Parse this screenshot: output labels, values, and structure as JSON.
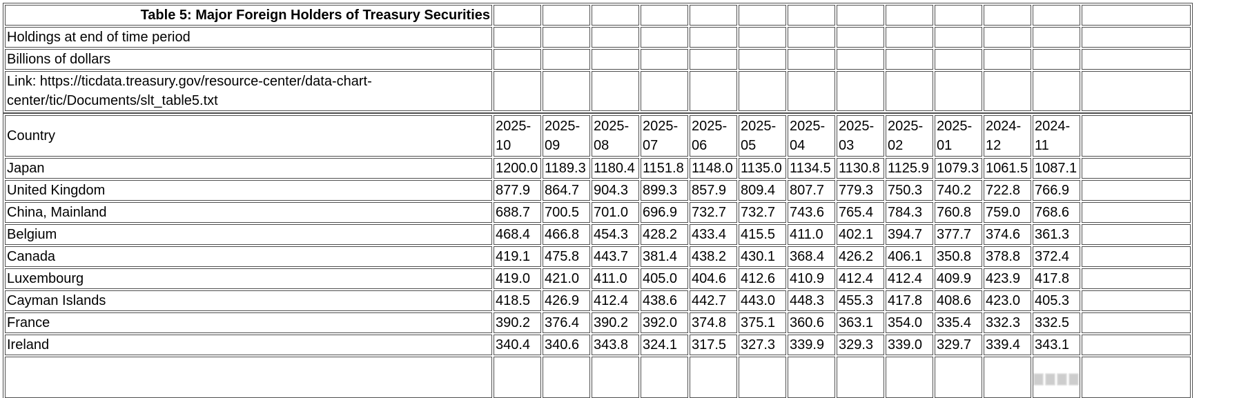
{
  "table": {
    "title": "Table 5: Major Foreign Holders of Treasury Securities",
    "holdings_note": "Holdings at end of time period",
    "units_note": "Billions of dollars",
    "link_line": "Link: https://ticdata.treasury.gov/resource-center/data-chart-center/tic/Documents/slt_table5.txt",
    "header": {
      "country_label": "Country",
      "periods": [
        "2025-10",
        "2025-09",
        "2025-08",
        "2025-07",
        "2025-06",
        "2025-05",
        "2025-04",
        "2025-03",
        "2025-02",
        "2025-01",
        "2024-12",
        "2024-11"
      ]
    },
    "rows": [
      {
        "country": "Japan",
        "values": [
          "1200.0",
          "1189.3",
          "1180.4",
          "1151.8",
          "1148.0",
          "1135.0",
          "1134.5",
          "1130.8",
          "1125.9",
          "1079.3",
          "1061.5",
          "1087.1"
        ]
      },
      {
        "country": "United Kingdom",
        "values": [
          "877.9",
          "864.7",
          "904.3",
          "899.3",
          "857.9",
          "809.4",
          "807.7",
          "779.3",
          "750.3",
          "740.2",
          "722.8",
          "766.9"
        ]
      },
      {
        "country": "China, Mainland",
        "values": [
          "688.7",
          "700.5",
          "701.0",
          "696.9",
          "732.7",
          "732.7",
          "743.6",
          "765.4",
          "784.3",
          "760.8",
          "759.0",
          "768.6"
        ]
      },
      {
        "country": "Belgium",
        "values": [
          "468.4",
          "466.8",
          "454.3",
          "428.2",
          "433.4",
          "415.5",
          "411.0",
          "402.1",
          "394.7",
          "377.7",
          "374.6",
          "361.3"
        ]
      },
      {
        "country": "Canada",
        "values": [
          "419.1",
          "475.8",
          "443.7",
          "381.4",
          "438.2",
          "430.1",
          "368.4",
          "426.2",
          "406.1",
          "350.8",
          "378.8",
          "372.4"
        ]
      },
      {
        "country": "Luxembourg",
        "values": [
          "419.0",
          "421.0",
          "411.0",
          "405.0",
          "404.6",
          "412.6",
          "410.9",
          "412.4",
          "412.4",
          "409.9",
          "423.9",
          "417.8"
        ]
      },
      {
        "country": "Cayman Islands",
        "values": [
          "418.5",
          "426.9",
          "412.4",
          "438.6",
          "442.7",
          "443.0",
          "448.3",
          "455.3",
          "417.8",
          "408.6",
          "423.0",
          "405.3"
        ]
      },
      {
        "country": "France",
        "values": [
          "390.2",
          "376.4",
          "390.2",
          "392.0",
          "374.8",
          "375.1",
          "360.6",
          "363.1",
          "354.0",
          "335.4",
          "332.3",
          "332.5"
        ]
      },
      {
        "country": "Ireland",
        "values": [
          "340.4",
          "340.6",
          "343.8",
          "324.1",
          "317.5",
          "327.3",
          "339.9",
          "329.3",
          "339.0",
          "329.7",
          "339.4",
          "343.1"
        ]
      }
    ]
  },
  "colors": {
    "border": "#4d4d4d",
    "text": "#000000",
    "background": "#ffffff",
    "watermark": "#9c9c9c"
  }
}
